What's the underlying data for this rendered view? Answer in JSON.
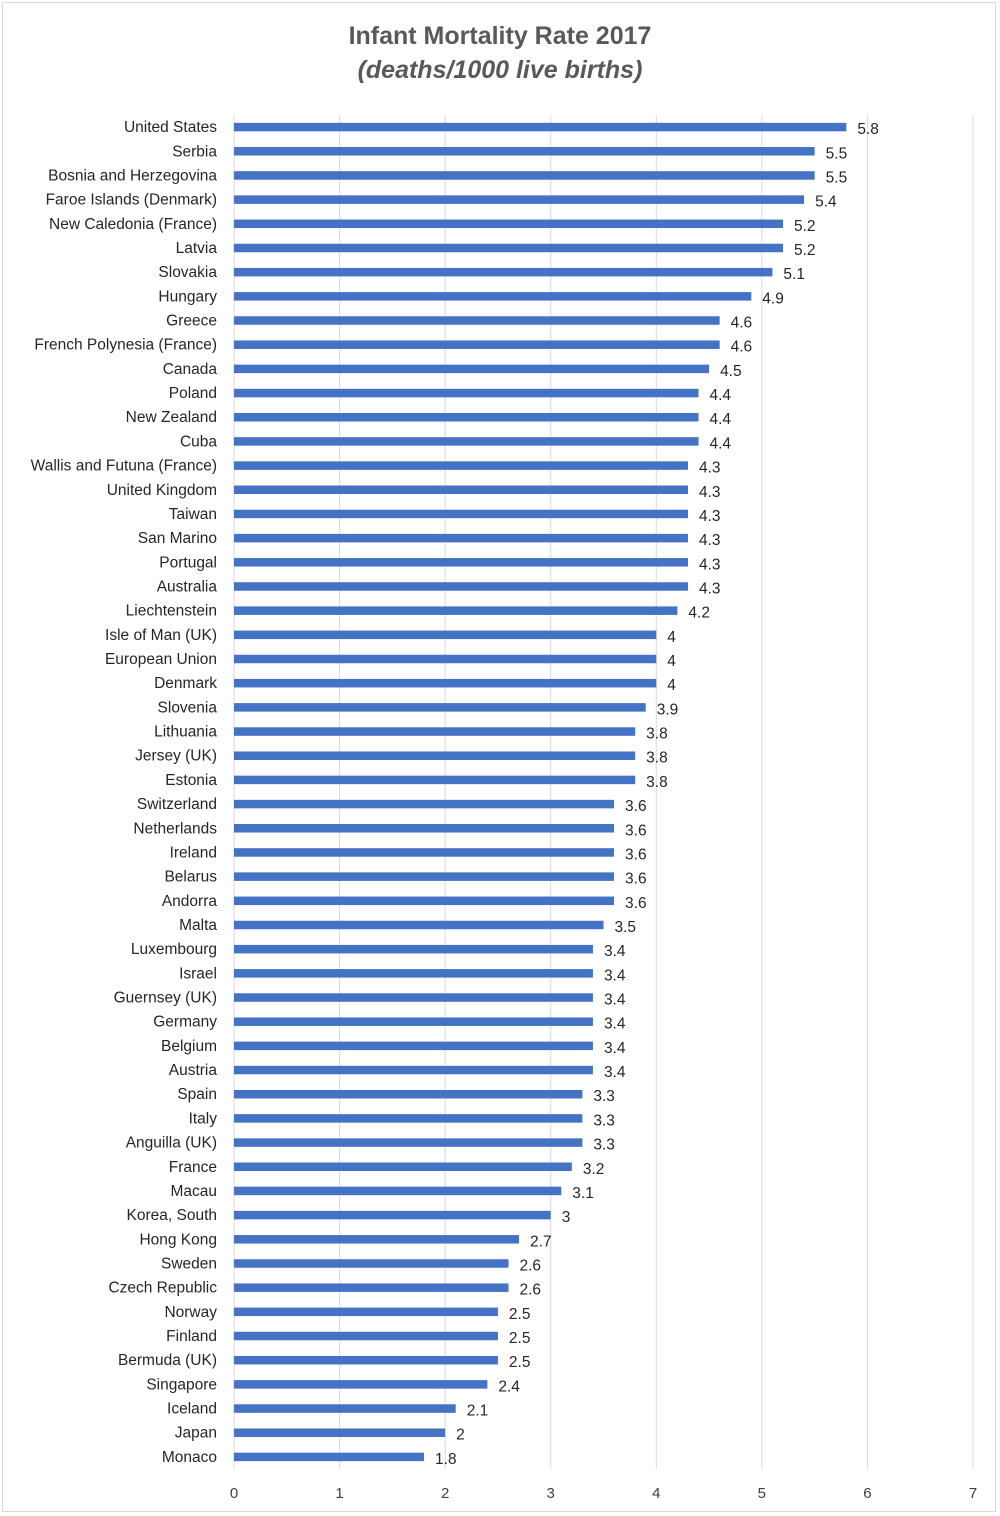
{
  "chart_data": {
    "type": "bar",
    "orientation": "horizontal",
    "title": "Infant Mortality Rate 2017",
    "subtitle": "(deaths/1000 live births)",
    "xlim": [
      0,
      7
    ],
    "x_ticks": [
      "0",
      "1",
      "2",
      "3",
      "4",
      "5",
      "6",
      "7"
    ],
    "grid": true,
    "bar_color": "#4472c4",
    "categories": [
      "United States",
      "Serbia",
      "Bosnia and Herzegovina",
      "Faroe Islands (Denmark)",
      "New Caledonia (France)",
      "Latvia",
      "Slovakia",
      "Hungary",
      "Greece",
      "French Polynesia (France)",
      "Canada",
      "Poland",
      "New Zealand",
      "Cuba",
      "Wallis and Futuna (France)",
      "United Kingdom",
      "Taiwan",
      "San Marino",
      "Portugal",
      "Australia",
      "Liechtenstein",
      "Isle of Man (UK)",
      "European Union",
      "Denmark",
      "Slovenia",
      "Lithuania",
      "Jersey (UK)",
      "Estonia",
      "Switzerland",
      "Netherlands",
      "Ireland",
      "Belarus",
      "Andorra",
      "Malta",
      "Luxembourg",
      "Israel",
      "Guernsey (UK)",
      "Germany",
      "Belgium",
      "Austria",
      "Spain",
      "Italy",
      "Anguilla (UK)",
      "France",
      "Macau",
      "Korea, South",
      "Hong Kong",
      "Sweden",
      "Czech Republic",
      "Norway",
      "Finland",
      "Bermuda (UK)",
      "Singapore",
      "Iceland",
      "Japan",
      "Monaco"
    ],
    "values": [
      5.8,
      5.5,
      5.5,
      5.4,
      5.2,
      5.2,
      5.1,
      4.9,
      4.6,
      4.6,
      4.5,
      4.4,
      4.4,
      4.4,
      4.3,
      4.3,
      4.3,
      4.3,
      4.3,
      4.3,
      4.2,
      4,
      4,
      4,
      3.9,
      3.8,
      3.8,
      3.8,
      3.6,
      3.6,
      3.6,
      3.6,
      3.6,
      3.5,
      3.4,
      3.4,
      3.4,
      3.4,
      3.4,
      3.4,
      3.3,
      3.3,
      3.3,
      3.2,
      3.1,
      3,
      2.7,
      2.6,
      2.6,
      2.5,
      2.5,
      2.5,
      2.4,
      2.1,
      2,
      1.8
    ],
    "value_labels": [
      "5.8",
      "5.5",
      "5.5",
      "5.4",
      "5.2",
      "5.2",
      "5.1",
      "4.9",
      "4.6",
      "4.6",
      "4.5",
      "4.4",
      "4.4",
      "4.4",
      "4.3",
      "4.3",
      "4.3",
      "4.3",
      "4.3",
      "4.3",
      "4.2",
      "4",
      "4",
      "4",
      "3.9",
      "3.8",
      "3.8",
      "3.8",
      "3.6",
      "3.6",
      "3.6",
      "3.6",
      "3.6",
      "3.5",
      "3.4",
      "3.4",
      "3.4",
      "3.4",
      "3.4",
      "3.4",
      "3.3",
      "3.3",
      "3.3",
      "3.2",
      "3.1",
      "3",
      "2.7",
      "2.6",
      "2.6",
      "2.5",
      "2.5",
      "2.5",
      "2.4",
      "2.1",
      "2",
      "1.8"
    ]
  }
}
